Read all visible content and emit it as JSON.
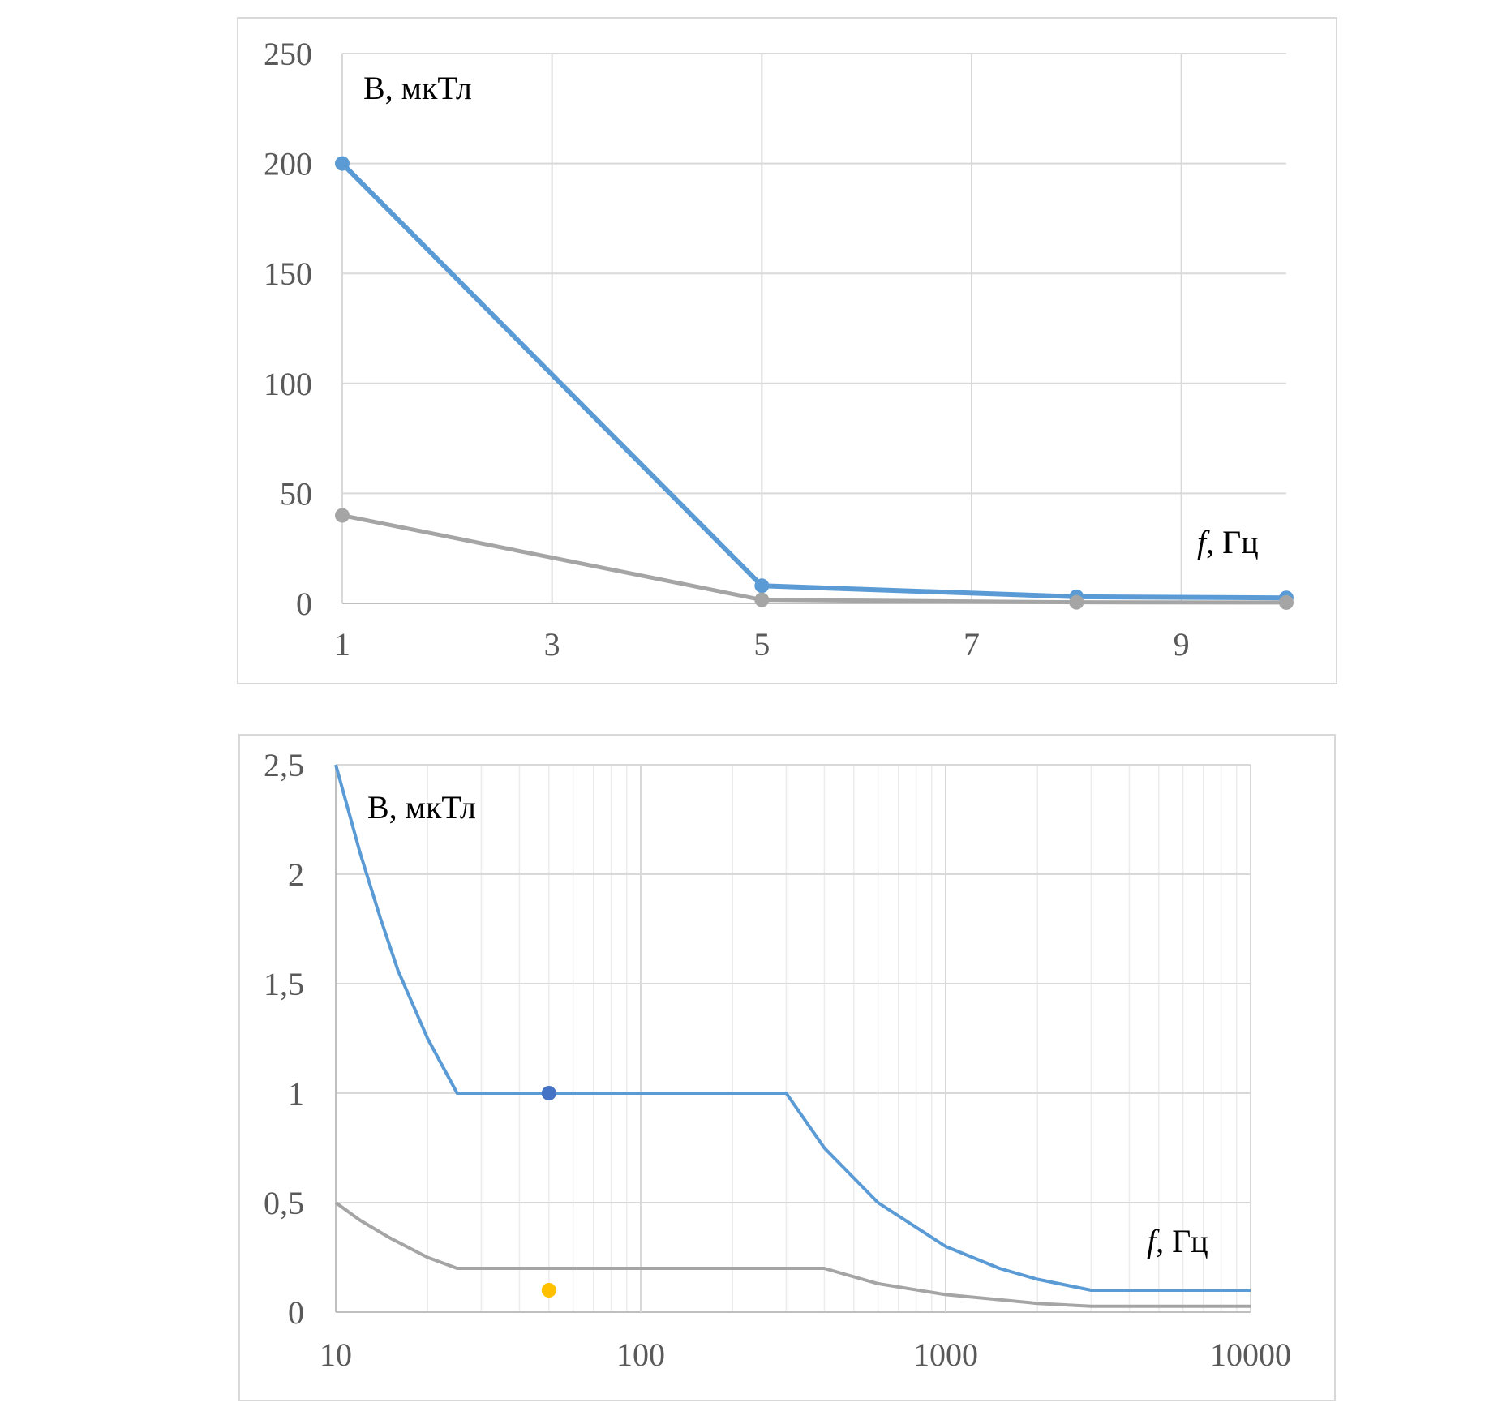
{
  "chart_data": [
    {
      "type": "line",
      "ylabel": "B, мкТл",
      "xlabel_italic": "f",
      "xlabel_rest": ", Гц",
      "xlim": [
        1,
        10
      ],
      "ylim": [
        0,
        250
      ],
      "x_ticks": [
        1,
        3,
        5,
        7,
        9
      ],
      "y_ticks": [
        "0",
        "50",
        "100",
        "150",
        "200",
        "250"
      ],
      "grid": true,
      "series": [
        {
          "color": "#5B9BD5",
          "x": [
            1,
            5,
            8,
            10
          ],
          "y": [
            200,
            8,
            3,
            2.5
          ]
        },
        {
          "color": "#A5A5A5",
          "x": [
            1,
            5,
            8,
            10
          ],
          "y": [
            40,
            1.6,
            0.5,
            0.4
          ]
        }
      ]
    },
    {
      "type": "line",
      "x_scale": "log",
      "ylabel": "B, мкТл",
      "xlabel_italic": "f",
      "xlabel_rest": ", Гц",
      "xlim": [
        10,
        10000
      ],
      "ylim": [
        0,
        2.5
      ],
      "x_ticks": [
        "10",
        "100",
        "1000",
        "10000"
      ],
      "y_ticks": [
        "0",
        "0,5",
        "1",
        "1,5",
        "2",
        "2,5"
      ],
      "grid": true,
      "series": [
        {
          "color": "#5B9BD5",
          "x": [
            10,
            12,
            14,
            16,
            20,
            25,
            300,
            400,
            600,
            1000,
            1500,
            2000,
            3000,
            10000
          ],
          "y": [
            2.5,
            2.1,
            1.8,
            1.56,
            1.25,
            1.0,
            1.0,
            0.75,
            0.5,
            0.3,
            0.2,
            0.15,
            0.1,
            0.1
          ]
        },
        {
          "color": "#A5A5A5",
          "x": [
            10,
            12,
            15,
            20,
            25,
            400,
            600,
            1000,
            2000,
            3000,
            10000
          ],
          "y": [
            0.5,
            0.42,
            0.34,
            0.25,
            0.2,
            0.2,
            0.13,
            0.08,
            0.04,
            0.027,
            0.027
          ]
        }
      ],
      "points": [
        {
          "x": 50,
          "y": 1.0,
          "color": "#4472C4"
        },
        {
          "x": 50,
          "y": 0.1,
          "color": "#FFC000"
        }
      ]
    }
  ]
}
